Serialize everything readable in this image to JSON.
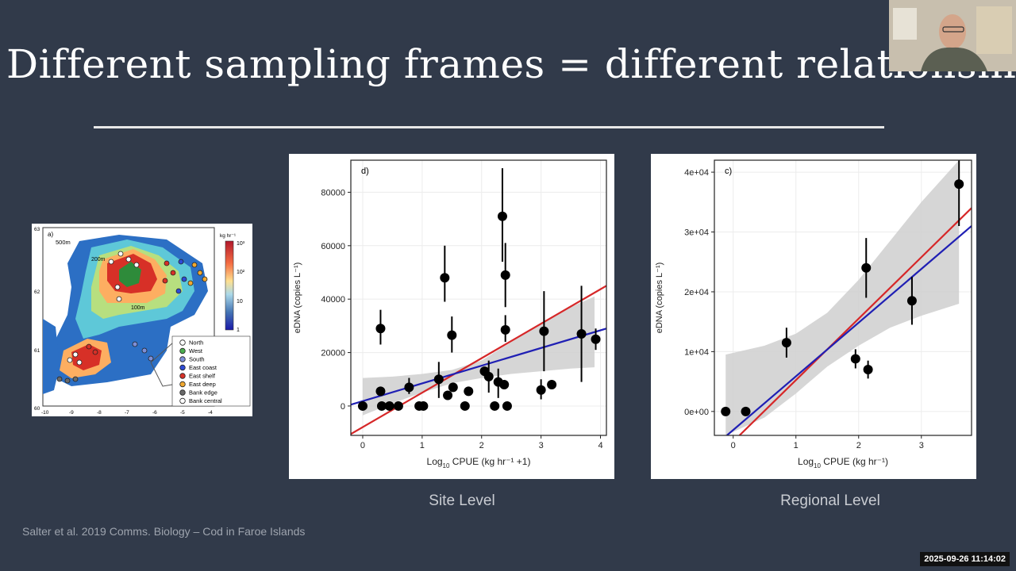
{
  "slide": {
    "title": "Different sampling frames = different relationships",
    "footer": "Salter et al. 2019 Comms. Biology – Cod in Faroe Islands",
    "timestamp": "2025-09-26 11:14:02"
  },
  "map": {
    "panel_label": "a)",
    "contour_labels": [
      "500m",
      "200m",
      "100m"
    ],
    "colorbar_title": "kg hr⁻¹",
    "colorbar_ticks": [
      "10³",
      "10²",
      "10",
      "1"
    ],
    "y_ticks": [
      "63",
      "62",
      "61",
      "60"
    ],
    "x_ticks": [
      "-10",
      "-9",
      "-8",
      "-7",
      "-6",
      "-5",
      "-4"
    ],
    "legend": [
      {
        "label": "North",
        "color": "#ffffff"
      },
      {
        "label": "West",
        "color": "#4caf50"
      },
      {
        "label": "South",
        "color": "#7e8fd8"
      },
      {
        "label": "East coast",
        "color": "#2e4bd6"
      },
      {
        "label": "East shelf",
        "color": "#d73027"
      },
      {
        "label": "East deep",
        "color": "#f0a830"
      },
      {
        "label": "Bank edge",
        "color": "#6a6a6a"
      },
      {
        "label": "Bank central",
        "color": "#ffffff"
      }
    ],
    "colors": {
      "high": "#b2182b",
      "mid": "#fdae61",
      "low": "#2c7bb6"
    }
  },
  "captions": {
    "left": "Site Level",
    "right": "Regional Level"
  },
  "chart_data": [
    {
      "type": "scatter",
      "panel_label": "d)",
      "xlabel_main": "Log",
      "xlabel_sub": "10",
      "xlabel_rest": " CPUE (kg hr⁻¹ +1)",
      "ylabel": "eDNA (copies L⁻¹)",
      "xlim": [
        -0.2,
        4.1
      ],
      "ylim": [
        -11000,
        92000
      ],
      "x_ticks": [
        0,
        1,
        2,
        3,
        4
      ],
      "y_ticks": [
        0,
        20000,
        40000,
        60000,
        80000
      ],
      "y_tick_labels": [
        "0",
        "20000",
        "40000",
        "60000",
        "80000"
      ],
      "points": [
        {
          "x": 0.0,
          "y": 0
        },
        {
          "x": 0.3,
          "y": 29000,
          "lo": 23000,
          "hi": 36000
        },
        {
          "x": 0.3,
          "y": 5500
        },
        {
          "x": 0.32,
          "y": 0
        },
        {
          "x": 0.45,
          "y": 0
        },
        {
          "x": 0.6,
          "y": 0
        },
        {
          "x": 0.78,
          "y": 7000,
          "lo": 4500,
          "hi": 10500
        },
        {
          "x": 0.95,
          "y": 0
        },
        {
          "x": 1.02,
          "y": 0
        },
        {
          "x": 1.28,
          "y": 10000,
          "lo": 3000,
          "hi": 16500
        },
        {
          "x": 1.38,
          "y": 48000,
          "lo": 39000,
          "hi": 60000
        },
        {
          "x": 1.43,
          "y": 4000
        },
        {
          "x": 1.5,
          "y": 26500,
          "lo": 20000,
          "hi": 33500
        },
        {
          "x": 1.52,
          "y": 7000
        },
        {
          "x": 1.72,
          "y": 0
        },
        {
          "x": 1.78,
          "y": 5500
        },
        {
          "x": 2.05,
          "y": 13000
        },
        {
          "x": 2.12,
          "y": 11000,
          "lo": 5000,
          "hi": 17000
        },
        {
          "x": 2.22,
          "y": 0
        },
        {
          "x": 2.28,
          "y": 9000,
          "lo": 3000,
          "hi": 14000
        },
        {
          "x": 2.35,
          "y": 71000,
          "lo": 54000,
          "hi": 89000
        },
        {
          "x": 2.38,
          "y": 8000
        },
        {
          "x": 2.4,
          "y": 49000,
          "lo": 37000,
          "hi": 61000
        },
        {
          "x": 2.4,
          "y": 28500,
          "lo": 24000,
          "hi": 34000
        },
        {
          "x": 2.43,
          "y": 0
        },
        {
          "x": 3.0,
          "y": 6000,
          "lo": 2500,
          "hi": 10000
        },
        {
          "x": 3.05,
          "y": 28000,
          "lo": 13000,
          "hi": 43000
        },
        {
          "x": 3.18,
          "y": 8000
        },
        {
          "x": 3.68,
          "y": 27000,
          "lo": 9000,
          "hi": 45000
        },
        {
          "x": 3.92,
          "y": 25000,
          "lo": 21000,
          "hi": 29000
        }
      ],
      "ci_band": {
        "x": [
          0.0,
          0.5,
          1.0,
          1.5,
          2.0,
          2.5,
          3.0,
          3.5,
          3.9
        ],
        "lo": [
          -3500,
          1000,
          5000,
          8500,
          10500,
          12000,
          13000,
          14000,
          14500
        ],
        "hi": [
          10500,
          11000,
          12000,
          13500,
          17000,
          24000,
          31000,
          37000,
          41000
        ]
      },
      "lines": [
        {
          "color": "#d62728",
          "x": [
            -0.2,
            4.1
          ],
          "y": [
            -10500,
            45000
          ]
        },
        {
          "color": "#1f1fb4",
          "x": [
            -0.2,
            4.1
          ],
          "y": [
            500,
            29000
          ]
        }
      ]
    },
    {
      "type": "scatter",
      "panel_label": "c)",
      "xlabel_main": "Log",
      "xlabel_sub": "10",
      "xlabel_rest": " CPUE (kg hr⁻¹)",
      "ylabel": "eDNA (copies L⁻¹)",
      "xlim": [
        -0.3,
        3.8
      ],
      "ylim": [
        -4000,
        42000
      ],
      "x_ticks": [
        0,
        1,
        2,
        3
      ],
      "y_ticks": [
        0,
        10000,
        20000,
        30000,
        40000
      ],
      "y_tick_labels": [
        "0e+00",
        "1e+04",
        "2e+04",
        "3e+04",
        "4e+04"
      ],
      "points": [
        {
          "x": -0.12,
          "y": 0
        },
        {
          "x": 0.2,
          "y": 0
        },
        {
          "x": 0.85,
          "y": 11500,
          "lo": 9000,
          "hi": 14000
        },
        {
          "x": 1.95,
          "y": 8800,
          "lo": 7200,
          "hi": 10400
        },
        {
          "x": 2.12,
          "y": 24000,
          "lo": 19000,
          "hi": 29000
        },
        {
          "x": 2.15,
          "y": 7000,
          "lo": 5500,
          "hi": 8500
        },
        {
          "x": 2.85,
          "y": 18500,
          "lo": 14500,
          "hi": 22500
        },
        {
          "x": 3.6,
          "y": 38000,
          "lo": 31000,
          "hi": 42000
        }
      ],
      "ci_band": {
        "x": [
          -0.12,
          0.5,
          1.0,
          1.5,
          2.0,
          2.5,
          3.0,
          3.6
        ],
        "lo": [
          -4000,
          -1000,
          3000,
          7500,
          11000,
          14000,
          16000,
          18000
        ],
        "hi": [
          9500,
          11000,
          13000,
          16500,
          22000,
          28500,
          35000,
          42000
        ]
      },
      "lines": [
        {
          "color": "#d62728",
          "x": [
            0.1,
            3.8
          ],
          "y": [
            -4000,
            34000
          ]
        },
        {
          "color": "#1f1fb4",
          "x": [
            -0.1,
            3.8
          ],
          "y": [
            -4000,
            31000
          ]
        }
      ]
    }
  ]
}
